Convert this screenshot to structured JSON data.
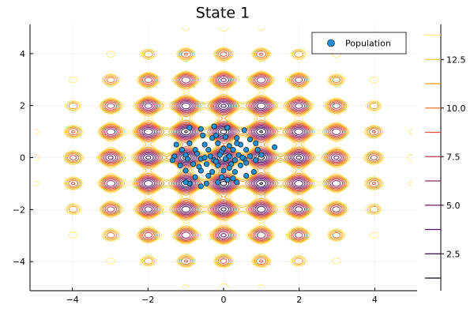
{
  "chart_data": {
    "type": "scatter",
    "title": "State 1",
    "xlabel": "",
    "ylabel": "",
    "xlim": [
      -5.12,
      5.12
    ],
    "ylim": [
      -5.12,
      5.12
    ],
    "x_ticks": [
      -4,
      -2,
      0,
      2,
      4
    ],
    "y_ticks": [
      -4,
      -2,
      0,
      2,
      4
    ],
    "x_tick_labels": [
      "−4",
      "−2",
      "0",
      "2",
      "4"
    ],
    "y_tick_labels": [
      "−4",
      "−2",
      "0",
      "2",
      "4"
    ],
    "grid": true,
    "legend_placement": "top-right",
    "contour": {
      "levels": [
        1.25,
        2.5,
        3.75,
        5.0,
        6.25,
        7.5,
        8.75,
        10.0,
        11.25,
        12.5,
        13.75
      ],
      "colorbar_ticks": [
        2.5,
        5.0,
        7.5,
        10.0,
        12.5
      ],
      "colorbar_tick_labels": [
        "2.5",
        "5.0",
        "7.5",
        "10.0",
        "12.5"
      ],
      "colorbar_range": [
        0.6,
        14.3
      ],
      "colormap": [
        "#000004",
        "#420a68",
        "#932667",
        "#dd513a",
        "#fca50a",
        "#fcffa4"
      ]
    },
    "series": [
      {
        "name": "Population",
        "color": "#1f8fd6",
        "points": [
          [
            -0.9,
            1.15
          ],
          [
            -0.6,
            1.1
          ],
          [
            -0.25,
            1.2
          ],
          [
            0.1,
            1.15
          ],
          [
            0.55,
            1.05
          ],
          [
            -0.55,
            0.85
          ],
          [
            -0.2,
            0.85
          ],
          [
            0.05,
            0.8
          ],
          [
            0.35,
            0.75
          ],
          [
            0.7,
            0.7
          ],
          [
            -1.25,
            0.5
          ],
          [
            -0.9,
            0.55
          ],
          [
            -0.5,
            0.5
          ],
          [
            -0.15,
            0.55
          ],
          [
            0.15,
            0.45
          ],
          [
            0.45,
            0.5
          ],
          [
            0.85,
            0.55
          ],
          [
            1.35,
            0.4
          ],
          [
            -0.75,
            0.3
          ],
          [
            -0.4,
            0.3
          ],
          [
            -0.05,
            0.25
          ],
          [
            0.25,
            0.3
          ],
          [
            0.6,
            0.3
          ],
          [
            -1.3,
            0.05
          ],
          [
            -1.0,
            0.1
          ],
          [
            -0.7,
            0.15
          ],
          [
            -0.35,
            0.05
          ],
          [
            -0.1,
            0.1
          ],
          [
            0.15,
            0.05
          ],
          [
            0.4,
            0.1
          ],
          [
            0.7,
            0.05
          ],
          [
            1.0,
            0.1
          ],
          [
            -1.35,
            -0.1
          ],
          [
            -0.95,
            -0.05
          ],
          [
            -0.6,
            -0.05
          ],
          [
            -0.25,
            -0.1
          ],
          [
            0.05,
            -0.05
          ],
          [
            0.3,
            -0.1
          ],
          [
            0.55,
            -0.05
          ],
          [
            0.85,
            -0.1
          ],
          [
            -1.15,
            -0.3
          ],
          [
            -0.8,
            -0.25
          ],
          [
            -0.45,
            -0.25
          ],
          [
            -0.15,
            -0.3
          ],
          [
            0.2,
            -0.25
          ],
          [
            0.45,
            -0.3
          ],
          [
            0.8,
            -0.55
          ],
          [
            -1.0,
            -0.5
          ],
          [
            -0.6,
            -0.5
          ],
          [
            -0.3,
            -0.55
          ],
          [
            0.0,
            -0.5
          ],
          [
            0.3,
            -0.55
          ],
          [
            -0.75,
            -0.75
          ],
          [
            -0.4,
            -0.7
          ],
          [
            -0.05,
            -0.75
          ],
          [
            0.25,
            -0.8
          ],
          [
            -0.9,
            -1.0
          ],
          [
            -0.45,
            -1.0
          ],
          [
            -0.15,
            -0.95
          ],
          [
            0.35,
            -0.95
          ],
          [
            -1.0,
            -0.95
          ],
          [
            -0.6,
            -1.1
          ],
          [
            0.1,
            -0.85
          ],
          [
            0.6,
            -0.2
          ],
          [
            -0.3,
            0.75
          ],
          [
            0.5,
            0.0
          ],
          [
            -0.5,
            0.0
          ],
          [
            0.0,
            0.35
          ],
          [
            0.15,
            -0.4
          ],
          [
            -0.2,
            -0.15
          ],
          [
            0.9,
            0.3
          ],
          [
            -1.1,
            0.3
          ],
          [
            0.35,
            0.55
          ],
          [
            -0.65,
            -0.35
          ],
          [
            0.6,
            -0.7
          ]
        ]
      }
    ]
  }
}
